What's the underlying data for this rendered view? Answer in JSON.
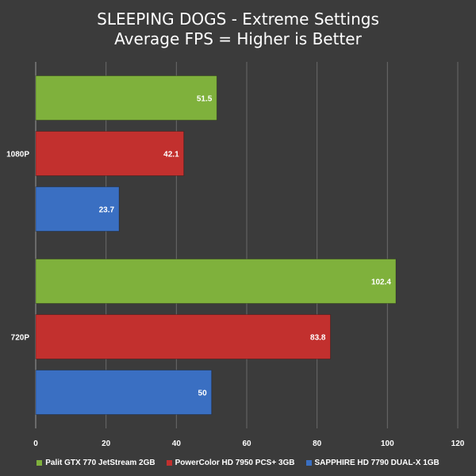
{
  "chart_data": {
    "type": "bar",
    "orientation": "horizontal",
    "title": "SLEEPING DOGS - Extreme Settings",
    "subtitle": "Average FPS = Higher is Better",
    "categories": [
      "1080P",
      "720P"
    ],
    "series": [
      {
        "name": "Palit GTX 770 JetStream 2GB",
        "color": "#7fb13c",
        "values": [
          51.5,
          102.4
        ]
      },
      {
        "name": "PowerColor HD 7950 PCS+ 3GB",
        "color": "#c2302e",
        "values": [
          42.1,
          83.8
        ]
      },
      {
        "name": "SAPPHIRE HD 7790 DUAL-X 1GB",
        "color": "#3a6fc2",
        "values": [
          23.7,
          50
        ]
      }
    ],
    "xlim": [
      0,
      120
    ],
    "xticks": [
      0,
      20,
      40,
      60,
      80,
      100,
      120
    ],
    "grid": true,
    "legend_position": "bottom"
  }
}
